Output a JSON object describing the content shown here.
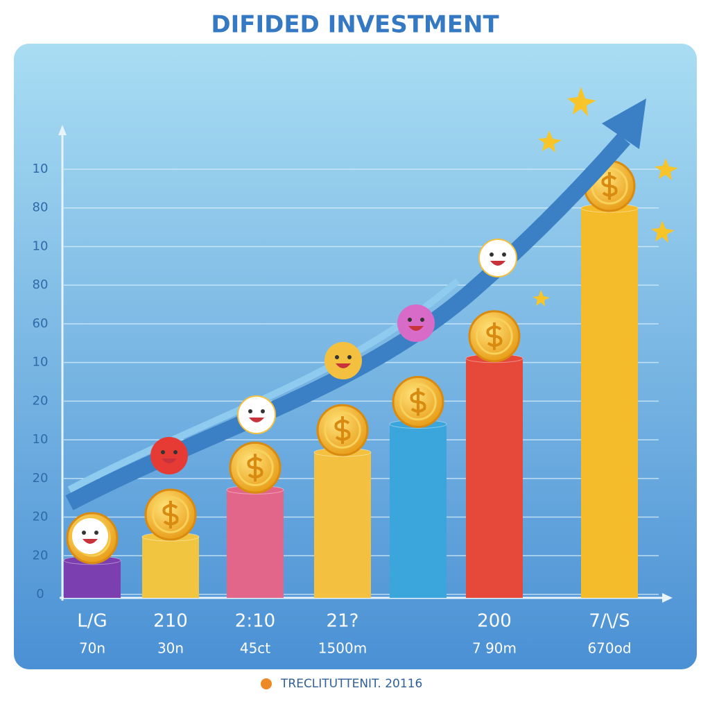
{
  "chart_data": {
    "type": "bar",
    "title": "DIFIDED INVESTMENT",
    "categories": [
      "L/G",
      "210",
      "2:10",
      "21?",
      null,
      "200",
      "7/\\/S"
    ],
    "sublabels": [
      "70n",
      "30n",
      "45ct",
      "1500m",
      null,
      "7 90m",
      "670od"
    ],
    "values": [
      8,
      13,
      23,
      31,
      37,
      51,
      83
    ],
    "colors": [
      "#7b3fb0",
      "#f2c540",
      "#e2668a",
      "#f3c13f",
      "#3aa6dc",
      "#e6483a",
      "#f4bb2a"
    ],
    "ylim": [
      0,
      100
    ],
    "y_axis_labels": [
      "10",
      "80",
      "10",
      "80",
      "60",
      "10",
      "20",
      "10",
      "20",
      "20",
      "20",
      "0"
    ],
    "footer": "TRECLITUTTENIT. 20116"
  }
}
